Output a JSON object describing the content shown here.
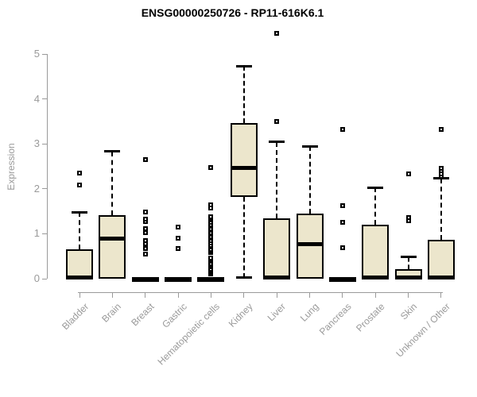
{
  "chart_data": {
    "type": "boxplot",
    "title": "ENSG00000250726 - RP11-616K6.1",
    "ylabel": "Expression",
    "xlabel": "",
    "ylim": [
      0,
      5
    ],
    "yticks": [
      0,
      1,
      2,
      3,
      4,
      5
    ],
    "grid": false,
    "legend": "none",
    "colors": {
      "box_fill": "#ECE6CC",
      "box_border": "#000000",
      "axis": "#9a9a9a",
      "tick_label": "#9a9a9a",
      "title": "#000000"
    },
    "categories": [
      "Bladder",
      "Brain",
      "Breast",
      "Gastric",
      "Hematopoietic cells",
      "Kidney",
      "Liver",
      "Lung",
      "Pancreas",
      "Prostate",
      "Skin",
      "Unknown / Other"
    ],
    "boxes": [
      {
        "category": "Bladder",
        "q1": 0,
        "median": 0.02,
        "q3": 0.65,
        "whisker_low": 0,
        "whisker_high": 1.48,
        "outliers": [
          2.08,
          2.35
        ]
      },
      {
        "category": "Brain",
        "q1": 0,
        "median": 0.9,
        "q3": 1.42,
        "whisker_low": 0,
        "whisker_high": 2.83,
        "outliers": []
      },
      {
        "category": "Breast",
        "q1": 0,
        "median": 0,
        "q3": 0,
        "whisker_low": 0,
        "whisker_high": 0,
        "outliers": [
          0.55,
          0.67,
          0.78,
          0.84,
          1.02,
          1.11,
          1.27,
          1.32,
          1.48,
          2.65
        ]
      },
      {
        "category": "Gastric",
        "q1": 0,
        "median": 0,
        "q3": 0,
        "whisker_low": 0,
        "whisker_high": 0,
        "outliers": [
          0.67,
          0.9,
          1.15
        ]
      },
      {
        "category": "Hematopoietic cells",
        "q1": 0,
        "median": 0,
        "q3": 0,
        "whisker_low": 0,
        "whisker_high": 0,
        "outliers": [
          0.11,
          0.14,
          0.18,
          0.22,
          0.26,
          0.3,
          0.34,
          0.38,
          0.42,
          0.46,
          0.58,
          0.62,
          0.66,
          0.71,
          0.75,
          0.8,
          0.85,
          0.9,
          0.94,
          0.99,
          1.03,
          1.08,
          1.12,
          1.17,
          1.21,
          1.26,
          1.3,
          1.34,
          1.38,
          1.57,
          1.64,
          2.47
        ]
      },
      {
        "category": "Kidney",
        "q1": 1.82,
        "median": 2.47,
        "q3": 3.46,
        "whisker_low": 0.02,
        "whisker_high": 4.73,
        "outliers": []
      },
      {
        "category": "Liver",
        "q1": 0,
        "median": 0.02,
        "q3": 1.34,
        "whisker_low": 0,
        "whisker_high": 3.04,
        "outliers": [
          3.5,
          5.46
        ]
      },
      {
        "category": "Lung",
        "q1": 0,
        "median": 0.76,
        "q3": 1.45,
        "whisker_low": 0,
        "whisker_high": 2.95,
        "outliers": []
      },
      {
        "category": "Pancreas",
        "q1": 0,
        "median": 0,
        "q3": 0,
        "whisker_low": 0,
        "whisker_high": 0,
        "outliers": [
          0.69,
          1.25,
          1.63,
          3.32
        ]
      },
      {
        "category": "Prostate",
        "q1": 0,
        "median": 0.02,
        "q3": 1.2,
        "whisker_low": 0,
        "whisker_high": 2.03,
        "outliers": []
      },
      {
        "category": "Skin",
        "q1": 0,
        "median": 0.02,
        "q3": 0.22,
        "whisker_low": 0,
        "whisker_high": 0.48,
        "outliers": [
          1.29,
          1.36,
          2.33
        ]
      },
      {
        "category": "Unknown / Other",
        "q1": 0,
        "median": 0.02,
        "q3": 0.87,
        "whisker_low": 0,
        "whisker_high": 2.23,
        "outliers": [
          2.28,
          2.33,
          2.4,
          2.46,
          3.32
        ]
      }
    ]
  }
}
